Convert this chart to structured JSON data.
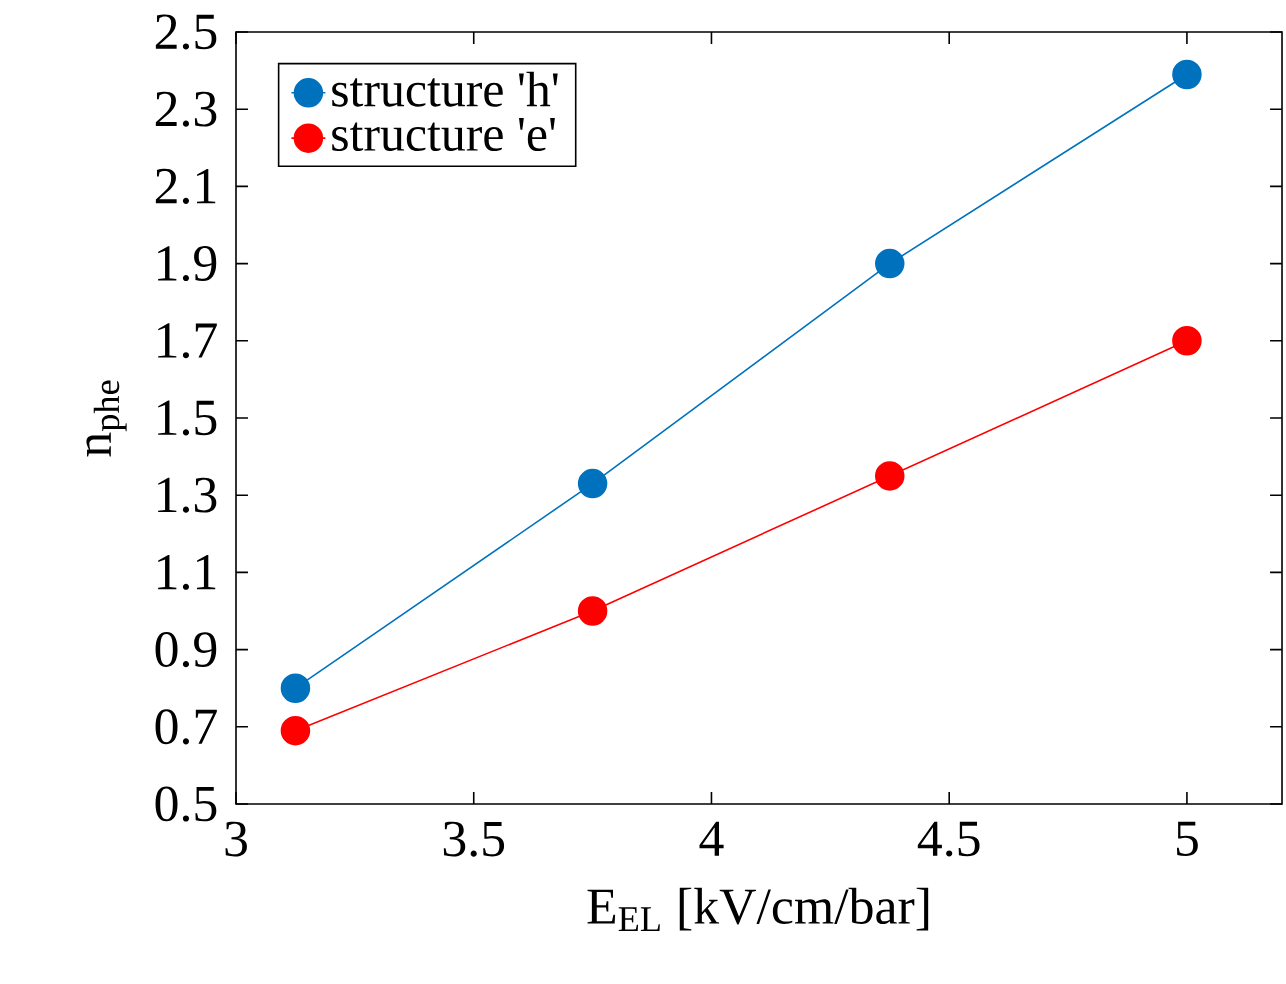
{
  "chart_data": {
    "type": "line",
    "xlabel": "E$_{EL}$ [kV/cm/bar]",
    "ylabel": "n$_{phe}$",
    "x": [
      3.125,
      3.75,
      4.375,
      5
    ],
    "series": [
      {
        "name": "structure 'h'",
        "color": "#0072bd",
        "values": [
          0.8,
          1.33,
          1.9,
          2.39
        ]
      },
      {
        "name": "structure 'e'",
        "color": "#ff0000",
        "values": [
          0.69,
          1.0,
          1.35,
          1.7
        ]
      }
    ],
    "xlim": [
      3,
      5.2
    ],
    "ylim": [
      0.5,
      2.5
    ],
    "xticks": [
      3,
      3.5,
      4,
      4.5,
      5
    ],
    "yticks": [
      0.5,
      0.7,
      0.9,
      1.1,
      1.3,
      1.5,
      1.7,
      1.9,
      2.1,
      2.3,
      2.5
    ],
    "grid": false,
    "legend": "top left",
    "marker": "circle",
    "line_style": "solid"
  }
}
